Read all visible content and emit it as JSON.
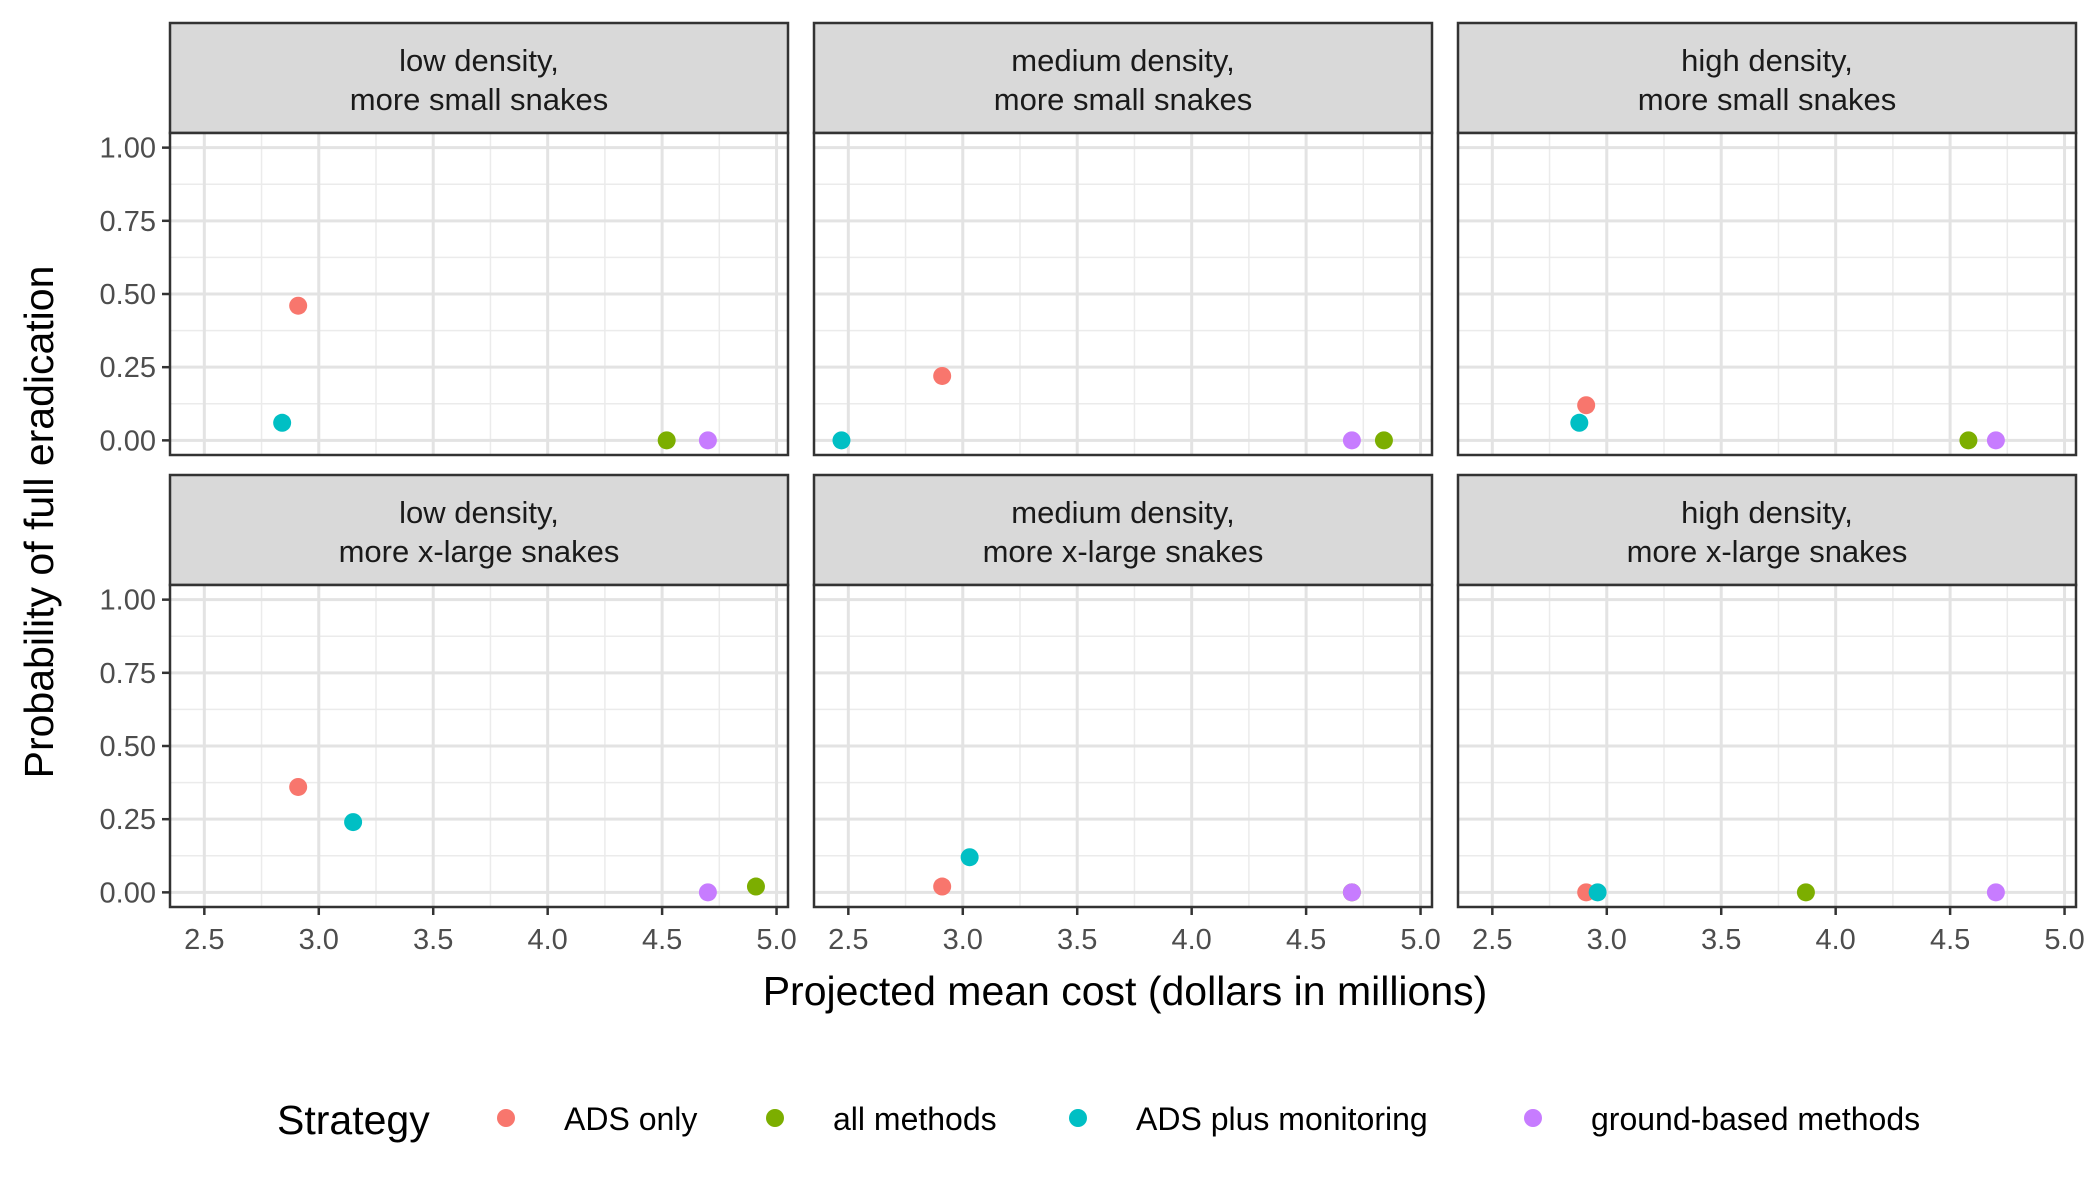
{
  "chart_data": {
    "type": "scatter",
    "xlabel": "Projected mean cost (dollars in millions)",
    "ylabel": "Probability of full eradication",
    "xlim": [
      2.35,
      5.05
    ],
    "ylim": [
      -0.05,
      1.05
    ],
    "x_ticks": [
      "2.5",
      "3.0",
      "3.5",
      "4.0",
      "4.5",
      "5.0"
    ],
    "y_ticks": [
      "0.00",
      "0.25",
      "0.50",
      "0.75",
      "1.00"
    ],
    "grid": true,
    "legend": {
      "title": "Strategy",
      "position": "bottom",
      "entries": [
        {
          "name": "ADS only",
          "color": "#F8766D"
        },
        {
          "name": "all methods",
          "color": "#7CAE00"
        },
        {
          "name": "ADS plus monitoring",
          "color": "#00BFC4"
        },
        {
          "name": "ground-based methods",
          "color": "#C77CFF"
        }
      ]
    },
    "panels": [
      {
        "strip": [
          "low density,",
          "more small snakes"
        ],
        "points": [
          {
            "series": "ADS only",
            "x": 2.91,
            "y": 0.46
          },
          {
            "series": "ADS plus monitoring",
            "x": 2.84,
            "y": 0.06
          },
          {
            "series": "all methods",
            "x": 4.52,
            "y": 0.0
          },
          {
            "series": "ground-based methods",
            "x": 4.7,
            "y": 0.0
          }
        ]
      },
      {
        "strip": [
          "medium density,",
          "more small snakes"
        ],
        "points": [
          {
            "series": "ADS only",
            "x": 2.91,
            "y": 0.22
          },
          {
            "series": "ADS plus monitoring",
            "x": 2.47,
            "y": 0.0
          },
          {
            "series": "ground-based methods",
            "x": 4.7,
            "y": 0.0
          },
          {
            "series": "all methods",
            "x": 4.84,
            "y": 0.0
          }
        ]
      },
      {
        "strip": [
          "high density,",
          "more small snakes"
        ],
        "points": [
          {
            "series": "ADS only",
            "x": 2.91,
            "y": 0.12
          },
          {
            "series": "ADS plus monitoring",
            "x": 2.88,
            "y": 0.06
          },
          {
            "series": "all methods",
            "x": 4.58,
            "y": 0.0
          },
          {
            "series": "ground-based methods",
            "x": 4.7,
            "y": 0.0
          }
        ]
      },
      {
        "strip": [
          "low density,",
          "more x-large snakes"
        ],
        "points": [
          {
            "series": "ADS only",
            "x": 2.91,
            "y": 0.36
          },
          {
            "series": "ADS plus monitoring",
            "x": 3.15,
            "y": 0.24
          },
          {
            "series": "ground-based methods",
            "x": 4.7,
            "y": 0.0
          },
          {
            "series": "all methods",
            "x": 4.91,
            "y": 0.02
          }
        ]
      },
      {
        "strip": [
          "medium density,",
          "more x-large snakes"
        ],
        "points": [
          {
            "series": "ADS only",
            "x": 2.91,
            "y": 0.02
          },
          {
            "series": "ADS plus monitoring",
            "x": 3.03,
            "y": 0.12
          },
          {
            "series": "all methods",
            "x": 4.7,
            "y": 0.0
          },
          {
            "series": "ground-based methods",
            "x": 4.7,
            "y": 0.0
          }
        ]
      },
      {
        "strip": [
          "high density,",
          "more x-large snakes"
        ],
        "points": [
          {
            "series": "ADS only",
            "x": 2.91,
            "y": 0.0
          },
          {
            "series": "ADS plus monitoring",
            "x": 2.96,
            "y": 0.0
          },
          {
            "series": "all methods",
            "x": 3.87,
            "y": 0.0
          },
          {
            "series": "ground-based methods",
            "x": 4.7,
            "y": 0.0
          }
        ]
      }
    ]
  }
}
